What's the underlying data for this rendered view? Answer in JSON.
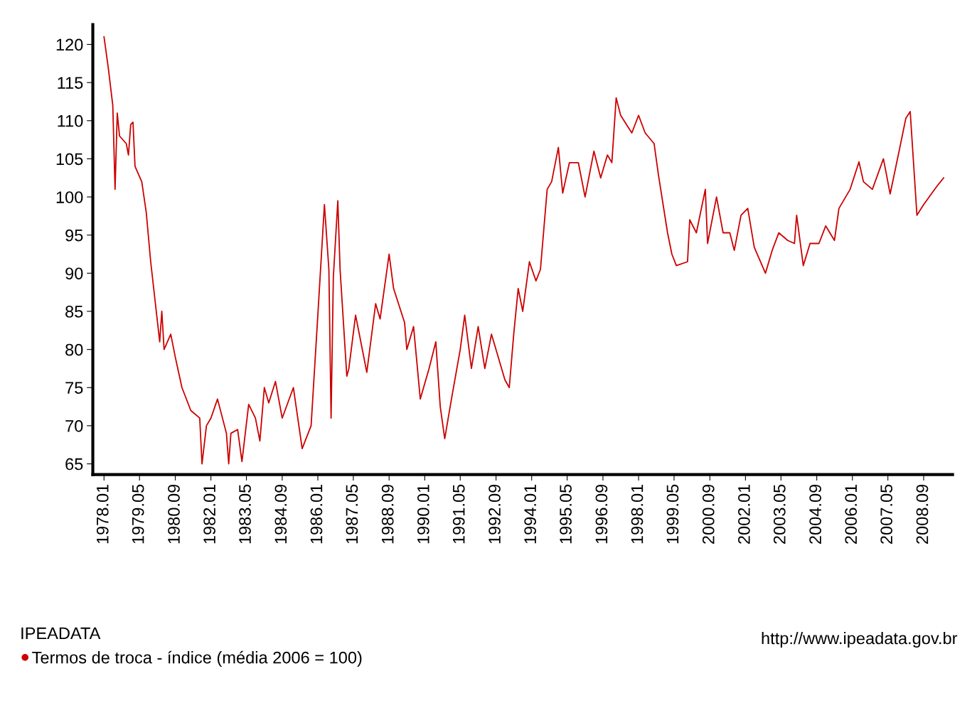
{
  "chart_data": {
    "type": "line",
    "x": [
      "1978-01",
      "1978-03",
      "1978-05",
      "1978-06",
      "1978-07",
      "1978-08",
      "1978-11",
      "1978-12",
      "1979-01",
      "1979-02",
      "1979-03",
      "1979-06",
      "1979-08",
      "1979-10",
      "1980-02",
      "1980-03",
      "1980-04",
      "1980-07",
      "1980-09",
      "1980-12",
      "1981-04",
      "1981-08",
      "1981-09",
      "1981-11",
      "1982-01",
      "1982-04",
      "1982-08",
      "1982-09",
      "1982-10",
      "1983-01",
      "1983-03",
      "1983-06",
      "1983-09",
      "1983-11",
      "1984-01",
      "1984-03",
      "1984-06",
      "1984-09",
      "1985-02",
      "1985-06",
      "1985-10",
      "1986-01",
      "1986-04",
      "1986-06",
      "1986-07",
      "1986-08",
      "1986-10",
      "1986-11",
      "1987-02",
      "1987-03",
      "1987-06",
      "1987-11",
      "1988-03",
      "1988-05",
      "1988-09",
      "1988-11",
      "1989-04",
      "1989-05",
      "1989-08",
      "1989-11",
      "1990-03",
      "1990-06",
      "1990-08",
      "1990-10",
      "1991-01",
      "1991-05",
      "1991-07",
      "1991-10",
      "1992-01",
      "1992-04",
      "1992-07",
      "1992-10",
      "1993-01",
      "1993-03",
      "1993-05",
      "1993-07",
      "1993-09",
      "1993-12",
      "1994-03",
      "1994-05",
      "1994-08",
      "1994-10",
      "1995-01",
      "1995-03",
      "1995-06",
      "1995-10",
      "1996-01",
      "1996-05",
      "1996-08",
      "1996-11",
      "1997-01",
      "1997-03",
      "1997-05",
      "1997-08",
      "1997-10",
      "1998-01",
      "1998-04",
      "1998-08",
      "1998-10",
      "1999-02",
      "1999-04",
      "1999-06",
      "1999-11",
      "1999-12",
      "2000-03",
      "2000-07",
      "2000-08",
      "2000-12",
      "2001-03",
      "2001-06",
      "2001-08",
      "2001-11",
      "2002-02",
      "2002-05",
      "2002-10",
      "2003-01",
      "2003-04",
      "2003-08",
      "2003-11",
      "2003-12",
      "2004-03",
      "2004-06",
      "2004-10",
      "2005-01",
      "2005-05",
      "2005-07",
      "2005-12",
      "2006-04",
      "2006-06",
      "2006-10",
      "2007-03",
      "2007-06",
      "2007-10",
      "2008-01",
      "2008-03",
      "2008-06",
      "2008-09",
      "2009-03",
      "2009-06"
    ],
    "series": [
      {
        "name": "Termos de troca - índice (média 2006 = 100)",
        "color": "#cc0000",
        "values": [
          121,
          116.9,
          112,
          101,
          111,
          108,
          107,
          105.5,
          109.5,
          109.8,
          104,
          102,
          98,
          91.5,
          81,
          85,
          80,
          82,
          79,
          75,
          72,
          71,
          65,
          70,
          71,
          73.5,
          69,
          65,
          69,
          69.5,
          65.3,
          72.8,
          71,
          68,
          75,
          73,
          75.8,
          71,
          75,
          67,
          70,
          84.5,
          99,
          90.5,
          71,
          89.5,
          99.5,
          90.5,
          76.5,
          77.5,
          84.5,
          77,
          86,
          84,
          92.5,
          88,
          83.5,
          80,
          83,
          73.5,
          77.5,
          81,
          72.5,
          68.3,
          73.5,
          80,
          84.5,
          77.5,
          83,
          77.5,
          82,
          79,
          76,
          75,
          82,
          88,
          85,
          91.5,
          89,
          90.5,
          101,
          102,
          106.5,
          100.5,
          104.5,
          104.5,
          100,
          106,
          102.5,
          105.5,
          104.5,
          113,
          110.7,
          109.3,
          108.4,
          110.7,
          108.4,
          107,
          102.8,
          95.3,
          92.5,
          91,
          91.5,
          97,
          95.3,
          101,
          93.9,
          100,
          95.3,
          95.3,
          93,
          97.6,
          98.5,
          93.4,
          90,
          93,
          95.3,
          94.3,
          93.9,
          97.6,
          91,
          93.9,
          93.9,
          96.2,
          94.3,
          98.5,
          101,
          104.6,
          102,
          101,
          105,
          100.4,
          106,
          110.3,
          111.2,
          97.6,
          99,
          101.4,
          102.5
        ]
      }
    ],
    "xlim": [
      "1977-08",
      "2009-10"
    ],
    "xticks": [
      {
        "value": "1978-01",
        "label": "1978.01"
      },
      {
        "value": "1979-05",
        "label": "1979.05"
      },
      {
        "value": "1980-09",
        "label": "1980.09"
      },
      {
        "value": "1982-01",
        "label": "1982.01"
      },
      {
        "value": "1983-05",
        "label": "1983.05"
      },
      {
        "value": "1984-09",
        "label": "1984.09"
      },
      {
        "value": "1986-01",
        "label": "1986.01"
      },
      {
        "value": "1987-05",
        "label": "1987.05"
      },
      {
        "value": "1988-09",
        "label": "1988.09"
      },
      {
        "value": "1990-01",
        "label": "1990.01"
      },
      {
        "value": "1991-05",
        "label": "1991.05"
      },
      {
        "value": "1992-09",
        "label": "1992.09"
      },
      {
        "value": "1994-01",
        "label": "1994.01"
      },
      {
        "value": "1995-05",
        "label": "1995.05"
      },
      {
        "value": "1996-09",
        "label": "1996.09"
      },
      {
        "value": "1998-01",
        "label": "1998.01"
      },
      {
        "value": "1999-05",
        "label": "1999.05"
      },
      {
        "value": "2000-09",
        "label": "2000.09"
      },
      {
        "value": "2002-01",
        "label": "2002.01"
      },
      {
        "value": "2003-05",
        "label": "2003.05"
      },
      {
        "value": "2004-09",
        "label": "2004.09"
      },
      {
        "value": "2006-01",
        "label": "2006.01"
      },
      {
        "value": "2007-05",
        "label": "2007.05"
      },
      {
        "value": "2008-09",
        "label": "2008.09"
      }
    ],
    "ylim": [
      63.6,
      122.6
    ],
    "yticks": [
      65,
      70,
      75,
      80,
      85,
      90,
      95,
      100,
      105,
      110,
      115,
      120
    ],
    "legend": "bottom left",
    "legend_title": "IPEADATA",
    "annotations": [
      "http://www.ipeadata.gov.br"
    ],
    "grid": false
  }
}
